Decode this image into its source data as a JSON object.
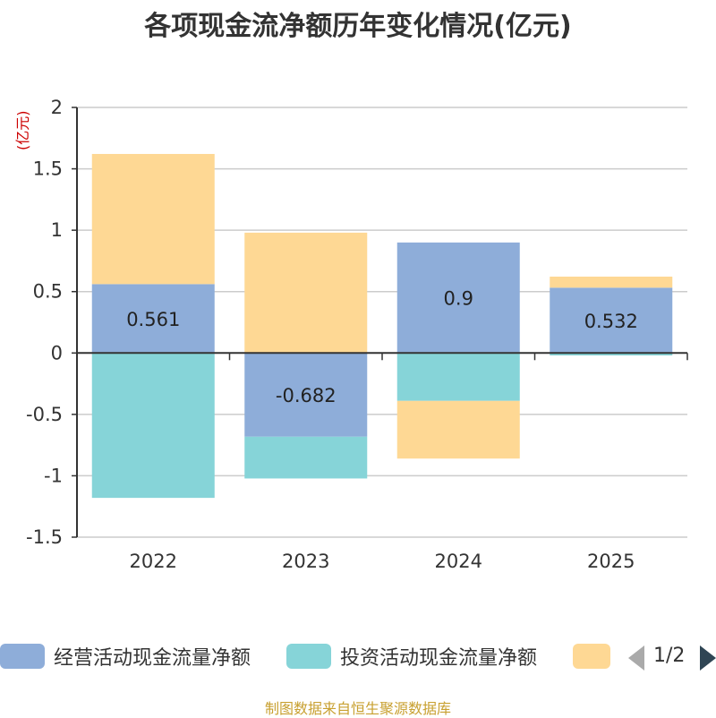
{
  "title": "各项现金流净额历年变化情况(亿元)",
  "unit": "(亿元)",
  "source": "制图数据来自恒生聚源数据库",
  "pagination": {
    "text": "1/2"
  },
  "colors": {
    "operating": "#8eadd9",
    "investing": "#86d4d8",
    "financing": "#fed894",
    "grid": "#cccccc",
    "axis": "#333333"
  },
  "legend": [
    {
      "label": "经营活动现金流量净额",
      "color": "#8eadd9"
    },
    {
      "label": "投资活动现金流量净额",
      "color": "#86d4d8"
    },
    {
      "label": "",
      "color": "#fed894"
    }
  ],
  "chart_data": {
    "type": "bar",
    "stacked": true,
    "categories": [
      "2022",
      "2023",
      "2024",
      "2025"
    ],
    "series": [
      {
        "name": "经营活动现金流量净额",
        "values": [
          0.561,
          -0.682,
          0.9,
          0.532
        ],
        "color": "#8eadd9"
      },
      {
        "name": "投资活动现金流量净额",
        "values": [
          -1.18,
          -0.34,
          -0.39,
          -0.02
        ],
        "color": "#86d4d8"
      },
      {
        "values": [
          1.06,
          0.98,
          -0.47,
          0.09
        ],
        "color": "#fed894"
      }
    ],
    "data_labels": [
      "0.561",
      "-0.682",
      "0.9",
      "0.532"
    ],
    "yticks": [
      "2",
      "1.5",
      "1",
      "0.5",
      "0",
      "-0.5",
      "-1",
      "-1.5"
    ],
    "ylim": [
      -1.5,
      2
    ],
    "grid": true,
    "legend_position": "bottom"
  }
}
